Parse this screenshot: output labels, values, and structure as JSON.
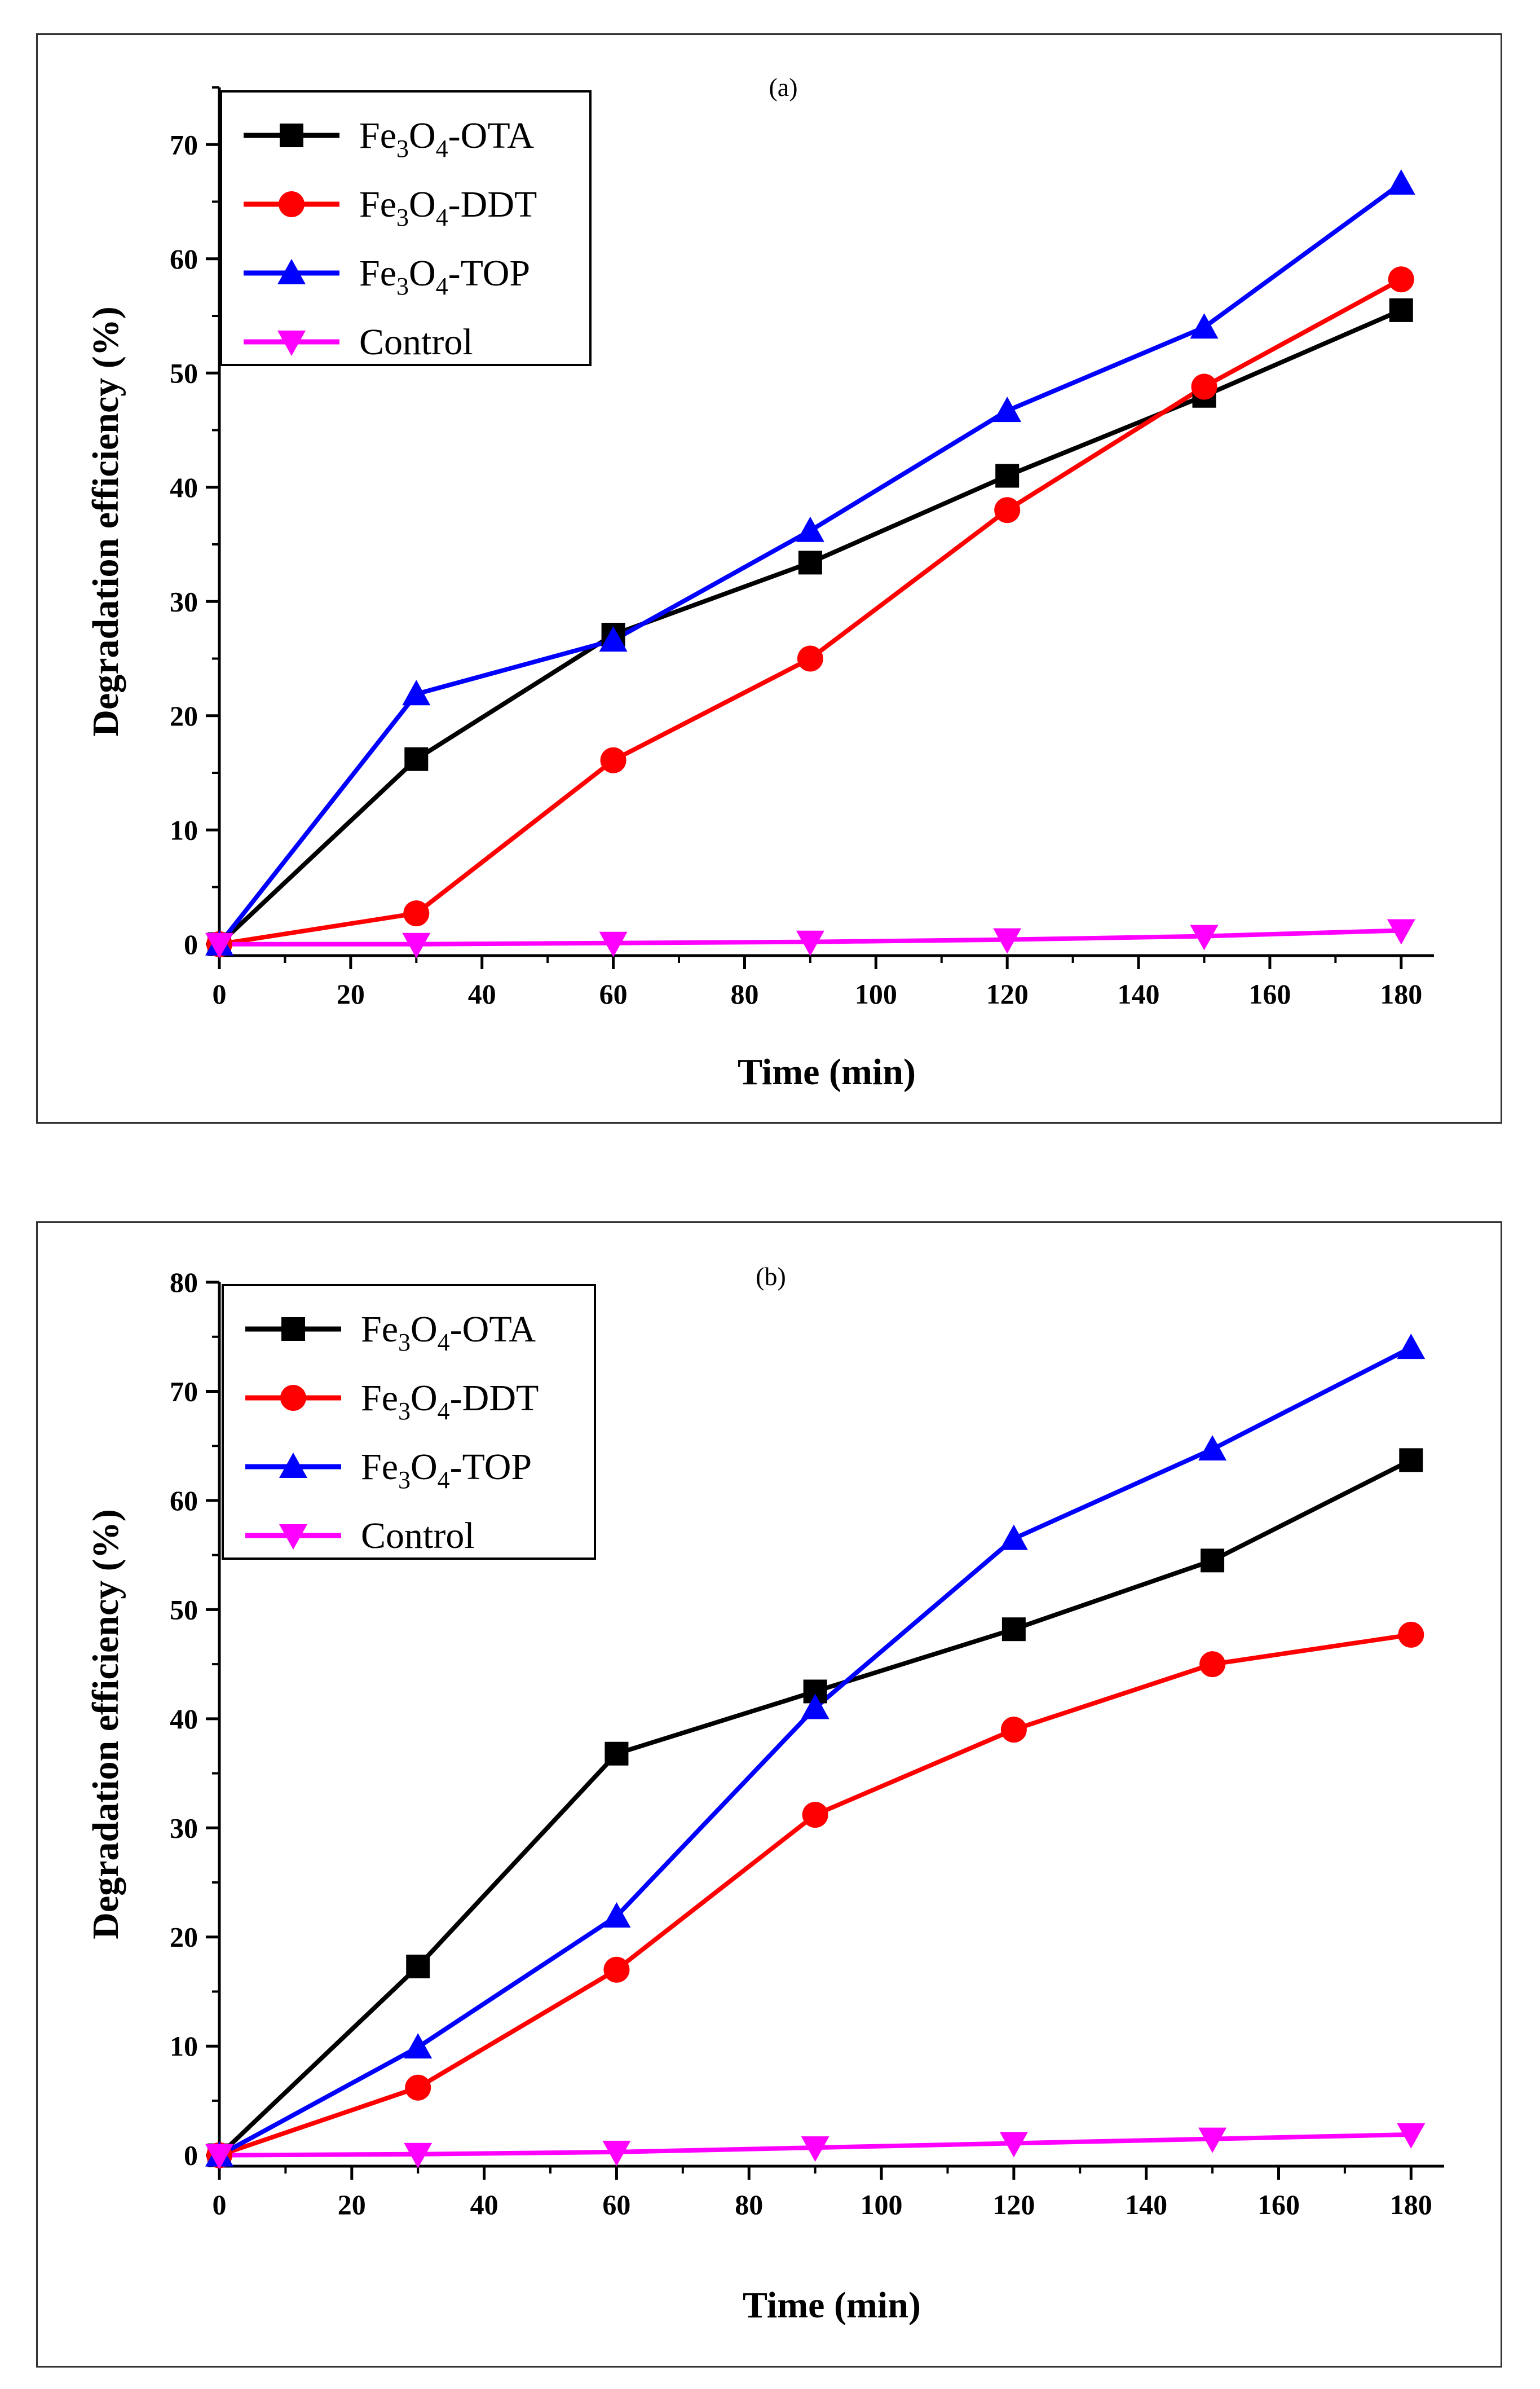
{
  "chart_data": [
    {
      "type": "line",
      "panel_label": "(a)",
      "xlabel": "Time (min)",
      "ylabel": "Degradation efficiency (%)",
      "xlim": [
        0,
        185
      ],
      "ylim": [
        -1,
        75
      ],
      "xticks": [
        0,
        20,
        40,
        60,
        80,
        100,
        120,
        140,
        160,
        180
      ],
      "yticks": [
        0,
        10,
        20,
        30,
        40,
        50,
        60,
        70
      ],
      "x": [
        0,
        30,
        60,
        90,
        120,
        150,
        180
      ],
      "legend_position": "top-left",
      "series": [
        {
          "name": "Fe3O4-OTA",
          "label_parts": [
            "Fe",
            "3",
            "O",
            "4",
            "-OTA"
          ],
          "color": "#000000",
          "marker": "square",
          "values": [
            0,
            16.2,
            27.1,
            33.4,
            41.0,
            48.0,
            55.5
          ]
        },
        {
          "name": "Fe3O4-DDT",
          "label_parts": [
            "Fe",
            "3",
            "O",
            "4",
            "-DDT"
          ],
          "color": "#ff0000",
          "marker": "circle",
          "values": [
            0,
            2.7,
            16.1,
            25.0,
            38.0,
            48.8,
            58.2
          ]
        },
        {
          "name": "Fe3O4-TOP",
          "label_parts": [
            "Fe",
            "3",
            "O",
            "4",
            "-TOP"
          ],
          "color": "#0000ff",
          "marker": "triangle-up",
          "values": [
            0,
            21.9,
            26.6,
            36.2,
            46.7,
            54.0,
            66.6
          ]
        },
        {
          "name": "Control",
          "label_parts": [
            "Control",
            "",
            "",
            "",
            ""
          ],
          "color": "#ff00ff",
          "marker": "triangle-down",
          "values": [
            0,
            0,
            0.1,
            0.2,
            0.4,
            0.7,
            1.2
          ]
        }
      ]
    },
    {
      "type": "line",
      "panel_label": "(b)",
      "xlabel": "Time (min)",
      "ylabel": "Degradation efficiency (%)",
      "xlim": [
        0,
        185
      ],
      "ylim": [
        -1,
        80
      ],
      "xticks": [
        0,
        20,
        40,
        60,
        80,
        100,
        120,
        140,
        160,
        180
      ],
      "yticks": [
        0,
        10,
        20,
        30,
        40,
        50,
        60,
        70,
        80
      ],
      "x": [
        0,
        30,
        60,
        90,
        120,
        150,
        180
      ],
      "legend_position": "top-left",
      "series": [
        {
          "name": "Fe3O4-OTA",
          "label_parts": [
            "Fe",
            "3",
            "O",
            "4",
            "-OTA"
          ],
          "color": "#000000",
          "marker": "square",
          "values": [
            0,
            17.3,
            36.8,
            42.5,
            48.2,
            54.5,
            63.7
          ]
        },
        {
          "name": "Fe3O4-DDT",
          "label_parts": [
            "Fe",
            "3",
            "O",
            "4",
            "-DDT"
          ],
          "color": "#ff0000",
          "marker": "circle",
          "values": [
            0,
            6.2,
            17.0,
            31.2,
            39.0,
            45.0,
            47.7
          ]
        },
        {
          "name": "Fe3O4-TOP",
          "label_parts": [
            "Fe",
            "3",
            "O",
            "4",
            "-TOP"
          ],
          "color": "#0000ff",
          "marker": "triangle-up",
          "values": [
            0,
            9.9,
            21.9,
            41.0,
            56.5,
            64.7,
            74.0
          ]
        },
        {
          "name": "Control",
          "label_parts": [
            "Control",
            "",
            "",
            "",
            ""
          ],
          "color": "#ff00ff",
          "marker": "triangle-down",
          "values": [
            0,
            0.1,
            0.3,
            0.7,
            1.1,
            1.5,
            1.9
          ]
        }
      ]
    }
  ]
}
